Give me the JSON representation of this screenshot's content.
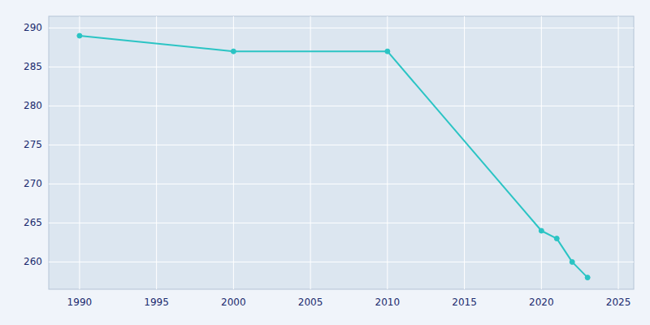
{
  "chart_data": {
    "type": "line",
    "x": [
      1990,
      2000,
      2010,
      2020,
      2021,
      2022,
      2023
    ],
    "values": [
      289,
      287,
      287,
      264,
      263,
      260,
      258
    ],
    "color": "#2bc4c4",
    "marker": "circle",
    "xlim": [
      1988,
      2026
    ],
    "ylim": [
      256.5,
      291.5
    ],
    "xticks": [
      1990,
      1995,
      2000,
      2005,
      2010,
      2015,
      2020,
      2025
    ],
    "yticks": [
      260,
      265,
      270,
      275,
      280,
      285,
      290
    ],
    "grid": true
  }
}
